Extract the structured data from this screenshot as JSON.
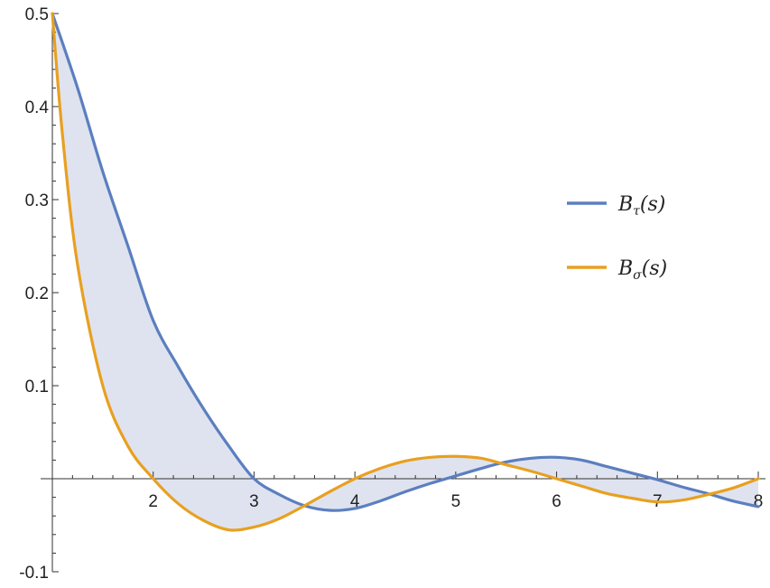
{
  "chart_data": {
    "type": "line",
    "title": "",
    "xlabel": "",
    "ylabel": "",
    "xlim": [
      1,
      8.1
    ],
    "ylim": [
      -0.1,
      0.5
    ],
    "x_ticks": [
      "2",
      "3",
      "4",
      "5",
      "6",
      "7",
      "8"
    ],
    "y_ticks": [
      "0.5",
      "0.4",
      "0.3",
      "0.2",
      "0.1",
      "-0.1"
    ],
    "fill_between_series": true,
    "fill_color": "#dfe3f0",
    "legend_position": "right",
    "series": [
      {
        "name": "Bτ(s)",
        "legend_main": "B",
        "legend_sub": "τ",
        "legend_arg": "(s)",
        "color": "#5b7fbf",
        "points": [
          [
            1.0,
            0.5
          ],
          [
            1.25,
            0.42
          ],
          [
            1.5,
            0.33
          ],
          [
            1.75,
            0.25
          ],
          [
            2.0,
            0.17
          ],
          [
            2.25,
            0.12
          ],
          [
            2.5,
            0.075
          ],
          [
            2.75,
            0.035
          ],
          [
            3.0,
            0.0
          ],
          [
            3.25,
            -0.017
          ],
          [
            3.5,
            -0.029
          ],
          [
            3.75,
            -0.034
          ],
          [
            4.0,
            -0.032
          ],
          [
            4.25,
            -0.024
          ],
          [
            4.5,
            -0.014
          ],
          [
            4.75,
            -0.005
          ],
          [
            5.0,
            0.003
          ],
          [
            5.25,
            0.011
          ],
          [
            5.5,
            0.018
          ],
          [
            5.75,
            0.022
          ],
          [
            6.0,
            0.023
          ],
          [
            6.25,
            0.02
          ],
          [
            6.5,
            0.013
          ],
          [
            6.75,
            0.006
          ],
          [
            7.0,
            -0.001
          ],
          [
            7.25,
            -0.009
          ],
          [
            7.5,
            -0.016
          ],
          [
            7.75,
            -0.024
          ],
          [
            8.0,
            -0.03
          ]
        ]
      },
      {
        "name": "Bσ(s)",
        "legend_main": "B",
        "legend_sub": "σ",
        "legend_arg": "(s)",
        "color": "#e8a020",
        "points": [
          [
            1.0,
            0.5
          ],
          [
            1.1,
            0.37
          ],
          [
            1.25,
            0.23
          ],
          [
            1.5,
            0.1
          ],
          [
            1.75,
            0.035
          ],
          [
            2.0,
            0.0
          ],
          [
            2.25,
            -0.027
          ],
          [
            2.5,
            -0.045
          ],
          [
            2.75,
            -0.055
          ],
          [
            3.0,
            -0.052
          ],
          [
            3.25,
            -0.043
          ],
          [
            3.5,
            -0.029
          ],
          [
            3.75,
            -0.014
          ],
          [
            4.0,
            0.0
          ],
          [
            4.25,
            0.011
          ],
          [
            4.5,
            0.019
          ],
          [
            4.75,
            0.023
          ],
          [
            5.0,
            0.024
          ],
          [
            5.25,
            0.022
          ],
          [
            5.5,
            0.015
          ],
          [
            5.75,
            0.008
          ],
          [
            6.0,
            0.0
          ],
          [
            6.25,
            -0.008
          ],
          [
            6.5,
            -0.016
          ],
          [
            6.75,
            -0.021
          ],
          [
            7.0,
            -0.025
          ],
          [
            7.25,
            -0.023
          ],
          [
            7.5,
            -0.017
          ],
          [
            7.75,
            -0.01
          ],
          [
            8.0,
            0.0
          ]
        ]
      }
    ]
  }
}
